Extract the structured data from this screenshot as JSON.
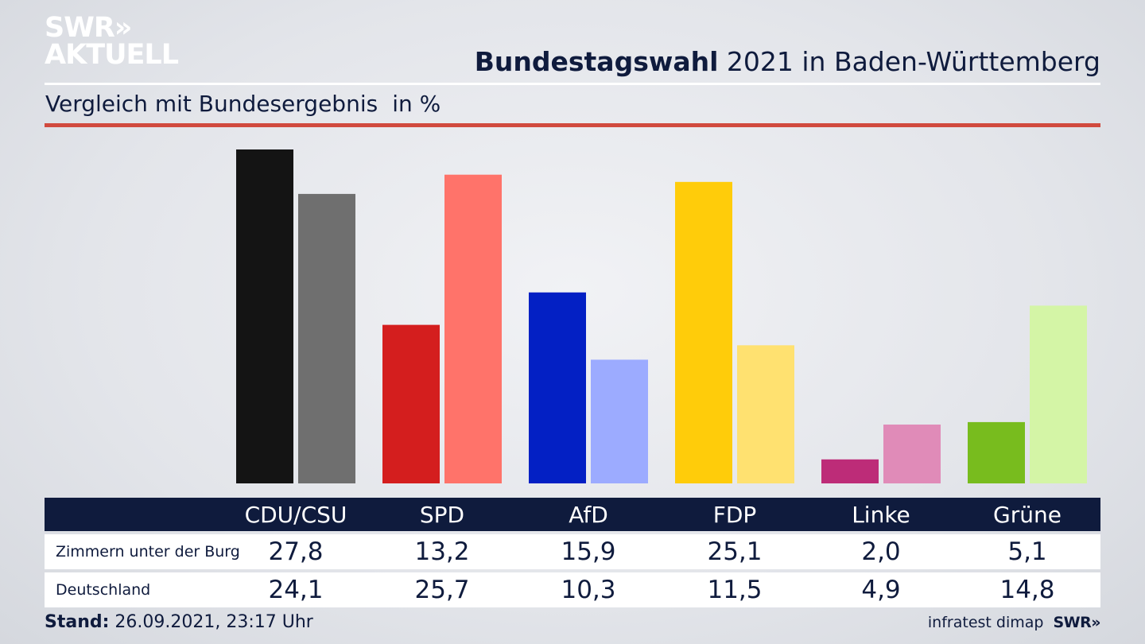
{
  "header": {
    "logo_line1": "SWR»",
    "logo_line2": "AKTUELL",
    "title_bold": "Bundestagswahl",
    "title_rest": " 2021 in Baden-Württemberg",
    "subtitle": "Vergleich mit Bundesergebnis",
    "unit": "in %"
  },
  "colors": {
    "accent_rule": "#d14a3e",
    "table_header_bg": "#0f1b3d"
  },
  "chart_data": {
    "type": "bar",
    "categories": [
      "CDU/CSU",
      "SPD",
      "AfD",
      "FDP",
      "Linke",
      "Grüne"
    ],
    "series": [
      {
        "name": "Zimmern unter der Burg",
        "values": [
          27.8,
          13.2,
          15.9,
          25.1,
          2.0,
          5.1
        ],
        "colors": [
          "#141414",
          "#d41e1e",
          "#0320c4",
          "#ffcc0a",
          "#bd2c78",
          "#78bc1e"
        ]
      },
      {
        "name": "Deutschland",
        "values": [
          24.1,
          25.7,
          10.3,
          11.5,
          4.9,
          14.8
        ],
        "colors": [
          "#6f6f6f",
          "#ff736a",
          "#9cabff",
          "#ffe170",
          "#e08bb8",
          "#d4f5a6"
        ]
      }
    ],
    "ylim": [
      0,
      27.8
    ]
  },
  "table": {
    "headers": [
      "CDU/CSU",
      "SPD",
      "AfD",
      "FDP",
      "Linke",
      "Grüne"
    ],
    "rows": [
      {
        "label": "Zimmern unter der Burg",
        "values": [
          "27,8",
          "13,2",
          "15,9",
          "25,1",
          "2,0",
          "5,1"
        ]
      },
      {
        "label": "Deutschland",
        "values": [
          "24,1",
          "25,7",
          "10,3",
          "11,5",
          "4,9",
          "14,8"
        ]
      }
    ]
  },
  "footer": {
    "stand_label": "Stand:",
    "stand_value": " 26.09.2021, 23:17 Uhr",
    "source": "infratest dimap",
    "brand": "SWR»"
  }
}
